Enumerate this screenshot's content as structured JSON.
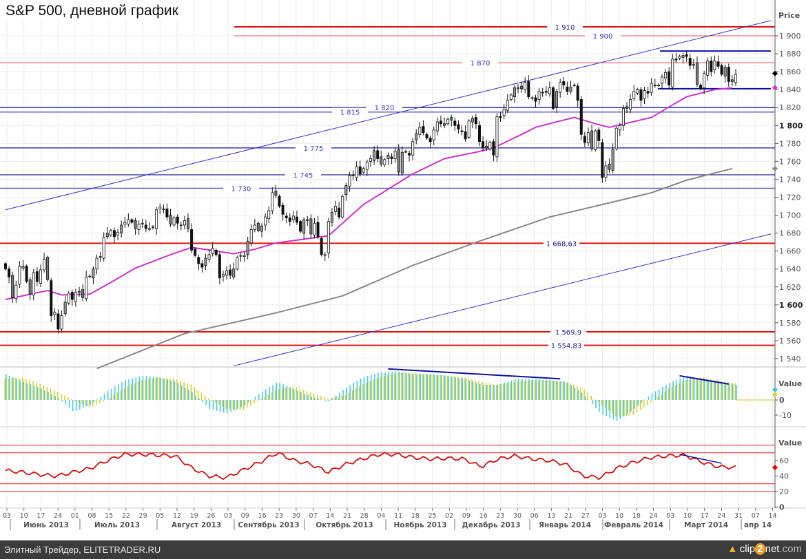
{
  "title": "S&P 500, дневной график",
  "footer": {
    "source": "Элитный Трейдер, ELITETRADER.RU",
    "logo": "clip2net.com",
    "logo_parts": [
      "clip",
      "2",
      "net",
      ".com"
    ]
  },
  "colors": {
    "bull_fill": "#ffffff",
    "bear_fill": "#111111",
    "gray_candle": "#999999",
    "ma50": "#cc33cc",
    "ma200": "#888888",
    "red_level": "#dd1111",
    "blue_level": "#1a1a8c",
    "channel": "#3333cc",
    "macd": "#33c6e0",
    "signal": "#d8d030",
    "rsi": "#d01010",
    "grid": "#ececec"
  },
  "chart_data": {
    "type": "candlestick",
    "title": "S&P 500, дневной график",
    "price_axis": {
      "label": "Price",
      "ylim": [
        1530,
        1920
      ],
      "ticks": [
        1540,
        1560,
        1580,
        1600,
        1620,
        1640,
        1660,
        1680,
        1700,
        1720,
        1740,
        1760,
        1780,
        1800,
        1820,
        1840,
        1860,
        1880,
        1900
      ],
      "tick_labels": [
        "1 540",
        "1 560",
        "1 580",
        "1 600",
        "1 620",
        "1 640",
        "1 660",
        "1 680",
        "1 700",
        "1 720",
        "1 740",
        "1 760",
        "1 780",
        "1 800",
        "1 820",
        "1 840",
        "1 860",
        "1 880",
        "1 900"
      ],
      "bold": [
        1600,
        1800
      ]
    },
    "close": [
      1640,
      1631,
      1608,
      1622,
      1643,
      1643,
      1626,
      1612,
      1636,
      1626,
      1639,
      1651,
      1628,
      1588,
      1592,
      1573,
      1588,
      1603,
      1613,
      1606,
      1614,
      1615,
      1608,
      1631,
      1632,
      1640,
      1652,
      1653,
      1675,
      1680,
      1683,
      1676,
      1681,
      1689,
      1692,
      1695,
      1692,
      1685,
      1690,
      1691,
      1685,
      1685,
      1686,
      1706,
      1709,
      1707,
      1698,
      1690,
      1697,
      1691,
      1689,
      1694,
      1685,
      1661,
      1655,
      1646,
      1642,
      1652,
      1656,
      1663,
      1656,
      1630,
      1634,
      1638,
      1633,
      1640,
      1653,
      1655,
      1655,
      1671,
      1684,
      1689,
      1683,
      1688,
      1698,
      1705,
      1725,
      1722,
      1710,
      1701,
      1697,
      1693,
      1699,
      1692,
      1682,
      1695,
      1694,
      1679,
      1691,
      1676,
      1656,
      1656,
      1693,
      1703,
      1710,
      1698,
      1721,
      1733,
      1744,
      1744,
      1754,
      1746,
      1752,
      1759,
      1763,
      1772,
      1763,
      1757,
      1762,
      1767,
      1763,
      1771,
      1748,
      1770,
      1771,
      1767,
      1782,
      1791,
      1798,
      1792,
      1786,
      1782,
      1795,
      1804,
      1802,
      1802,
      1807,
      1806,
      1800,
      1796,
      1793,
      1785,
      1805,
      1808,
      1802,
      1782,
      1775,
      1775,
      1781,
      1767,
      1810,
      1809,
      1818,
      1828,
      1834,
      1842,
      1842,
      1841,
      1848,
      1832,
      1831,
      1827,
      1838,
      1837,
      1837,
      1842,
      1819,
      1838,
      1848,
      1845,
      1838,
      1843,
      1845,
      1828,
      1790,
      1781,
      1792,
      1774,
      1794,
      1783,
      1742,
      1755,
      1751,
      1773,
      1797,
      1800,
      1819,
      1819,
      1829,
      1838,
      1840,
      1828,
      1839,
      1836,
      1847,
      1845,
      1845,
      1854,
      1859,
      1845,
      1874,
      1873,
      1877,
      1878,
      1877,
      1867,
      1868,
      1846,
      1841,
      1858,
      1872,
      1860,
      1872,
      1866,
      1857,
      1865,
      1849,
      1849,
      1857
    ],
    "ma50": [
      [
        0,
        1606
      ],
      [
        12,
        1616
      ],
      [
        16,
        1611
      ],
      [
        24,
        1612
      ],
      [
        30,
        1625
      ],
      [
        37,
        1641
      ],
      [
        47,
        1656
      ],
      [
        53,
        1664
      ],
      [
        60,
        1660
      ],
      [
        65,
        1657
      ],
      [
        71,
        1662
      ],
      [
        77,
        1669
      ],
      [
        92,
        1677
      ],
      [
        102,
        1712
      ],
      [
        116,
        1746
      ],
      [
        125,
        1763
      ],
      [
        135,
        1771
      ],
      [
        139,
        1775
      ],
      [
        147,
        1790
      ],
      [
        151,
        1798
      ],
      [
        162,
        1809
      ],
      [
        168,
        1802
      ],
      [
        172,
        1798
      ],
      [
        184,
        1809
      ],
      [
        190,
        1823
      ],
      [
        194,
        1832
      ],
      [
        202,
        1840
      ],
      [
        207,
        1842
      ]
    ],
    "ma200": [
      [
        26,
        1529
      ],
      [
        51,
        1568
      ],
      [
        77,
        1591
      ],
      [
        96,
        1610
      ],
      [
        116,
        1644
      ],
      [
        135,
        1671
      ],
      [
        155,
        1698
      ],
      [
        168,
        1710
      ],
      [
        184,
        1725
      ],
      [
        194,
        1739
      ],
      [
        207,
        1752
      ]
    ],
    "levels": [
      {
        "value": 1910,
        "label": "1 910",
        "style": "red-thick"
      },
      {
        "value": 1900,
        "label": "1 900",
        "style": "red-thin"
      },
      {
        "value": 1870,
        "label": "1 870",
        "style": "red-thin"
      },
      {
        "value": 1820,
        "label": "1 820",
        "style": "navy"
      },
      {
        "value": 1815,
        "label": "1 815",
        "style": "blue"
      },
      {
        "value": 1775,
        "label": "1 775",
        "style": "navy"
      },
      {
        "value": 1745,
        "label": "1 745",
        "style": "navy"
      },
      {
        "value": 1730,
        "label": "1 730",
        "style": "blue"
      },
      {
        "value": 1668.63,
        "label": "1 668,63",
        "style": "red-thick"
      },
      {
        "value": 1569.9,
        "label": "1 569,9",
        "style": "red-thick"
      },
      {
        "value": 1554.83,
        "label": "1 554,83",
        "style": "red-thick"
      }
    ],
    "trendlines": [
      {
        "name": "channel-upper",
        "from": [
          0,
          1706
        ],
        "to": [
          218,
          1917
        ]
      },
      {
        "name": "channel-lower",
        "from": [
          65,
          1532
        ],
        "to": [
          218,
          1679
        ]
      },
      {
        "name": "range-top",
        "from": [
          185,
          1883
        ],
        "to": [
          218,
          1883
        ]
      },
      {
        "name": "range-bottom",
        "from": [
          185,
          1841
        ],
        "to": [
          218,
          1841
        ]
      }
    ],
    "last_markers": [
      {
        "value": 1858,
        "series": "close"
      },
      {
        "value": 1842,
        "series": "ma50"
      },
      {
        "value": 1752,
        "series": "ma200"
      }
    ],
    "macd_panel": {
      "label": "Value",
      "ylim": [
        -17,
        21
      ],
      "ticks": [
        0,
        -10
      ],
      "tick_labels": [
        "0",
        "-10"
      ],
      "macd_weekly": [
        17,
        12,
        8,
        2,
        -8,
        -3,
        6,
        13,
        16,
        15,
        12,
        5,
        -6,
        -9,
        -4,
        5,
        12,
        7,
        2,
        -1,
        8,
        15,
        18,
        19,
        17,
        17,
        16,
        14,
        10,
        10,
        14,
        14,
        13,
        12,
        4,
        -9,
        -14,
        -6,
        4,
        11,
        16,
        14,
        12,
        10
      ],
      "signal_weekly": [
        14,
        15,
        11,
        6,
        0,
        -5,
        0,
        8,
        13,
        15,
        14,
        10,
        1,
        -6,
        -7,
        0,
        7,
        9,
        5,
        1,
        3,
        10,
        15,
        18,
        18,
        17,
        16,
        15,
        12,
        10,
        12,
        13,
        13,
        12,
        8,
        -2,
        -11,
        -10,
        -2,
        7,
        13,
        15,
        13,
        11
      ],
      "divergence_lines": [
        {
          "from": [
            109,
            20.5
          ],
          "to": [
            158,
            14
          ]
        },
        {
          "from": [
            192,
            16
          ],
          "to": [
            206,
            10.5
          ]
        }
      ]
    },
    "rsi_panel": {
      "label": "Value",
      "ylim": [
        -2,
        100
      ],
      "ticks": [
        60,
        40,
        20,
        0
      ],
      "tick_labels": [
        "60",
        "40",
        "20",
        "0"
      ],
      "levels": [
        80,
        70,
        30,
        20
      ],
      "rsi_weekly": [
        47,
        45,
        42,
        40,
        45,
        50,
        60,
        68,
        68,
        67,
        66,
        50,
        40,
        38,
        48,
        58,
        70,
        60,
        55,
        45,
        55,
        62,
        68,
        68,
        64,
        62,
        63,
        62,
        52,
        62,
        66,
        62,
        60,
        55,
        40,
        38,
        50,
        58,
        64,
        66,
        67,
        58,
        52,
        51
      ],
      "divergence_lines": [
        {
          "from": [
            192,
            68
          ],
          "to": [
            204,
            56.5
          ]
        }
      ]
    },
    "x_axis": {
      "day_ticks": [
        "03",
        "10",
        "17",
        "24",
        "01",
        "08",
        "15",
        "22",
        "29",
        "05",
        "12",
        "19",
        "26",
        "03",
        "09",
        "16",
        "23",
        "30",
        "07",
        "14",
        "21",
        "28",
        "04",
        "11",
        "18",
        "25",
        "02",
        "09",
        "16",
        "23",
        "30",
        "06",
        "13",
        "21",
        "27",
        "03",
        "10",
        "18",
        "24",
        "03",
        "10",
        "17",
        "24",
        "31",
        "07",
        "14"
      ],
      "months": [
        "Июнь 2013",
        "Июль 2013",
        "Август 2013",
        "Сентябрь 2013",
        "Октябрь 2013",
        "Ноябрь 2013",
        "Декабрь 2013",
        "Январь 2014",
        "Февраль 2014",
        "Март 2014",
        "апр 14"
      ]
    }
  }
}
